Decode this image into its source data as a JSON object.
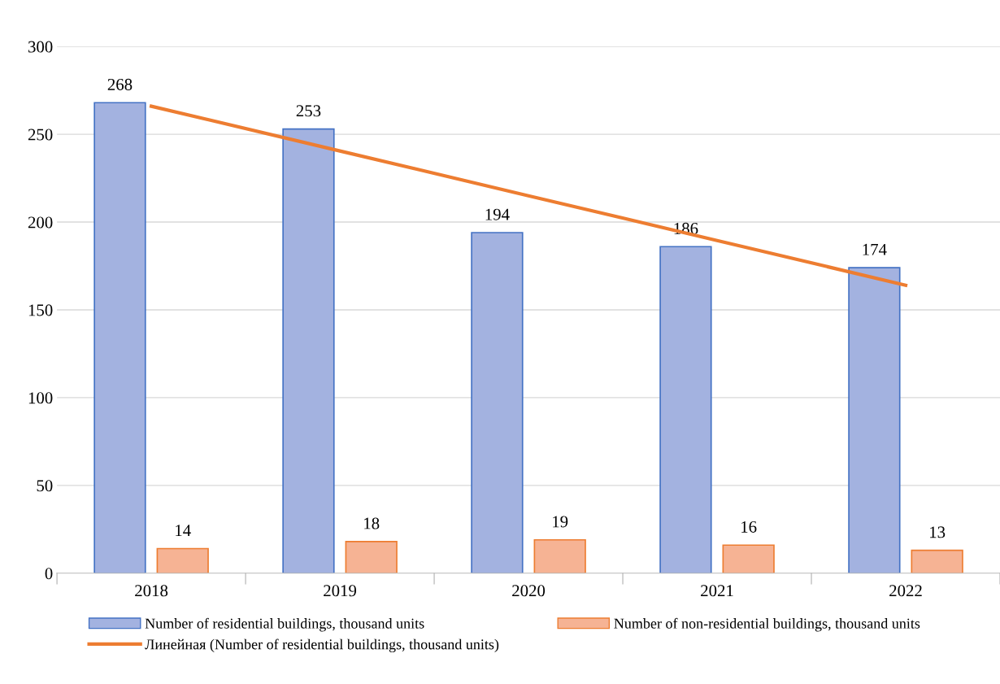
{
  "chart_data": {
    "type": "bar",
    "categories": [
      "2018",
      "2019",
      "2020",
      "2021",
      "2022"
    ],
    "series": [
      {
        "name": "Number of residential buildings, thousand units",
        "color": "#a3b2e0",
        "values": [
          268,
          253,
          194,
          186,
          174
        ],
        "value_labels": [
          "268",
          "253",
          "194",
          "186",
          "174"
        ]
      },
      {
        "name": "Number of non-residential buildings, thousand units",
        "color": "#f6b394",
        "values": [
          14,
          18,
          19,
          16,
          13
        ],
        "value_labels": [
          "14",
          "18",
          "19",
          "16",
          "13"
        ]
      },
      {
        "name": "Линейная (Number of residential buildings, thousand units)",
        "type": "line",
        "color": "#ed7d31",
        "values": [
          266,
          240.5,
          215,
          189.5,
          164
        ]
      }
    ],
    "ylim": [
      0,
      300
    ],
    "yticks": [
      0,
      50,
      100,
      150,
      200,
      250,
      300
    ],
    "grid": "y",
    "legend": "bottom"
  }
}
